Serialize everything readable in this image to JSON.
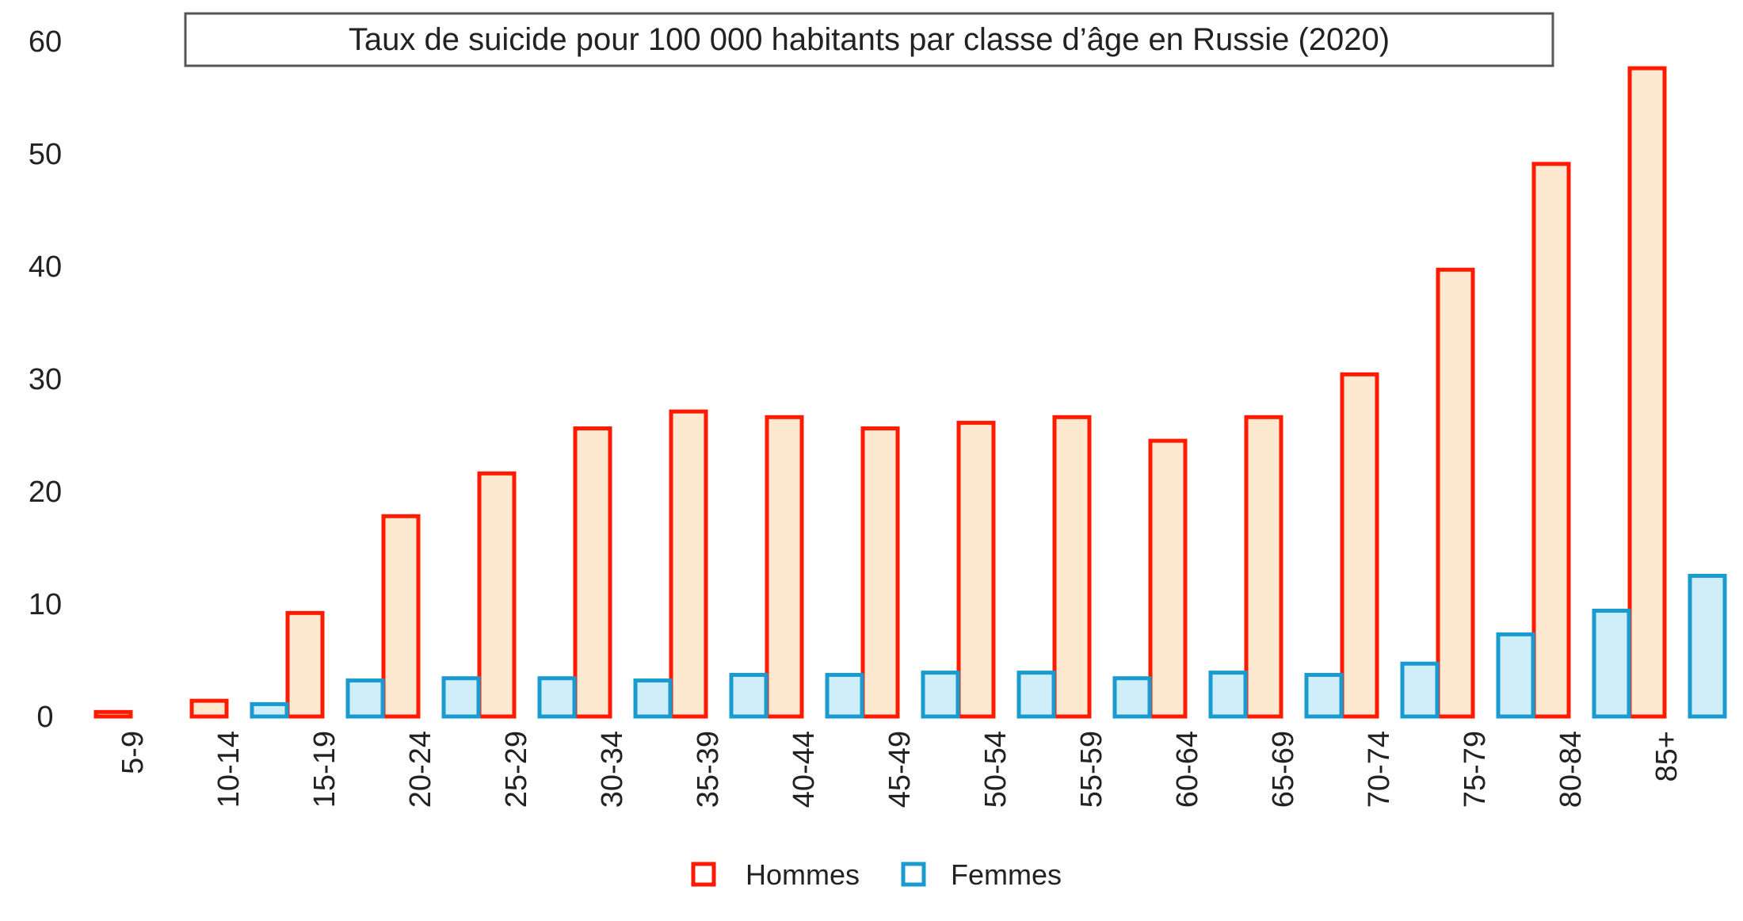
{
  "chart_data": {
    "type": "bar",
    "title": "Taux de suicide pour 100 000 habitants par classe d’âge en Russie (2020)",
    "categories": [
      "5-9",
      "10-14",
      "15-19",
      "20-24",
      "25-29",
      "30-34",
      "35-39",
      "40-44",
      "45-49",
      "50-54",
      "55-59",
      "60-64",
      "65-69",
      "70-74",
      "75-79",
      "80-84",
      "85+"
    ],
    "series": [
      {
        "name": "Hommes",
        "stroke": "#ff1a00",
        "fill": "#fde8d0",
        "values": [
          0.4,
          1.4,
          9.2,
          17.8,
          21.6,
          25.6,
          27.1,
          26.6,
          25.6,
          26.1,
          26.6,
          24.5,
          26.6,
          30.4,
          39.7,
          49.1,
          57.6
        ]
      },
      {
        "name": "Femmes",
        "stroke": "#1a9bd0",
        "fill": "#cfeefa",
        "values": [
          0,
          1.1,
          3.2,
          3.4,
          3.4,
          3.2,
          3.7,
          3.7,
          3.9,
          3.9,
          3.4,
          3.9,
          3.7,
          4.7,
          7.3,
          9.4,
          12.5
        ]
      }
    ],
    "yticks": [
      "0",
      "10",
      "20",
      "30",
      "40",
      "50",
      "60"
    ],
    "ylim": [
      0,
      60
    ],
    "grid": false,
    "legend_position": "bottom-center"
  }
}
